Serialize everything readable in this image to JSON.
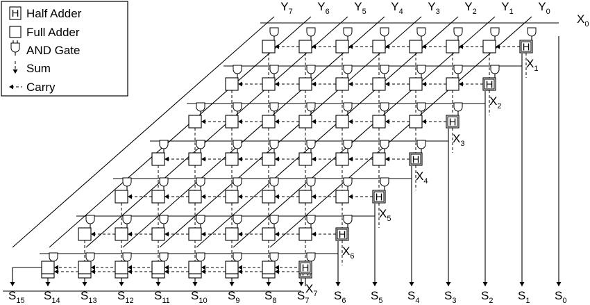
{
  "legend": {
    "half_adder": "Half Adder",
    "full_adder": "Full Adder",
    "and_gate": "AND Gate",
    "sum": "Sum",
    "carry": "Carry",
    "half_adder_glyph": "H"
  },
  "y_inputs": [
    {
      "base": "Y",
      "sub": "7"
    },
    {
      "base": "Y",
      "sub": "6"
    },
    {
      "base": "Y",
      "sub": "5"
    },
    {
      "base": "Y",
      "sub": "4"
    },
    {
      "base": "Y",
      "sub": "3"
    },
    {
      "base": "Y",
      "sub": "2"
    },
    {
      "base": "Y",
      "sub": "1"
    },
    {
      "base": "Y",
      "sub": "0"
    }
  ],
  "x_inputs": [
    {
      "base": "X",
      "sub": "0"
    },
    {
      "base": "X",
      "sub": "1"
    },
    {
      "base": "X",
      "sub": "2"
    },
    {
      "base": "X",
      "sub": "3"
    },
    {
      "base": "X",
      "sub": "4"
    },
    {
      "base": "X",
      "sub": "5"
    },
    {
      "base": "X",
      "sub": "6"
    },
    {
      "base": "X",
      "sub": "7"
    }
  ],
  "sum_outputs": [
    {
      "base": "S",
      "sub": "15"
    },
    {
      "base": "S",
      "sub": "14"
    },
    {
      "base": "S",
      "sub": "13"
    },
    {
      "base": "S",
      "sub": "12"
    },
    {
      "base": "S",
      "sub": "11"
    },
    {
      "base": "S",
      "sub": "10"
    },
    {
      "base": "S",
      "sub": "9"
    },
    {
      "base": "S",
      "sub": "8"
    },
    {
      "base": "S",
      "sub": "7"
    },
    {
      "base": "S",
      "sub": "6"
    },
    {
      "base": "S",
      "sub": "5"
    },
    {
      "base": "S",
      "sub": "4"
    },
    {
      "base": "S",
      "sub": "3"
    },
    {
      "base": "S",
      "sub": "2"
    },
    {
      "base": "S",
      "sub": "1"
    },
    {
      "base": "S",
      "sub": "0"
    }
  ],
  "array": {
    "rows": 7,
    "cols": 8
  }
}
